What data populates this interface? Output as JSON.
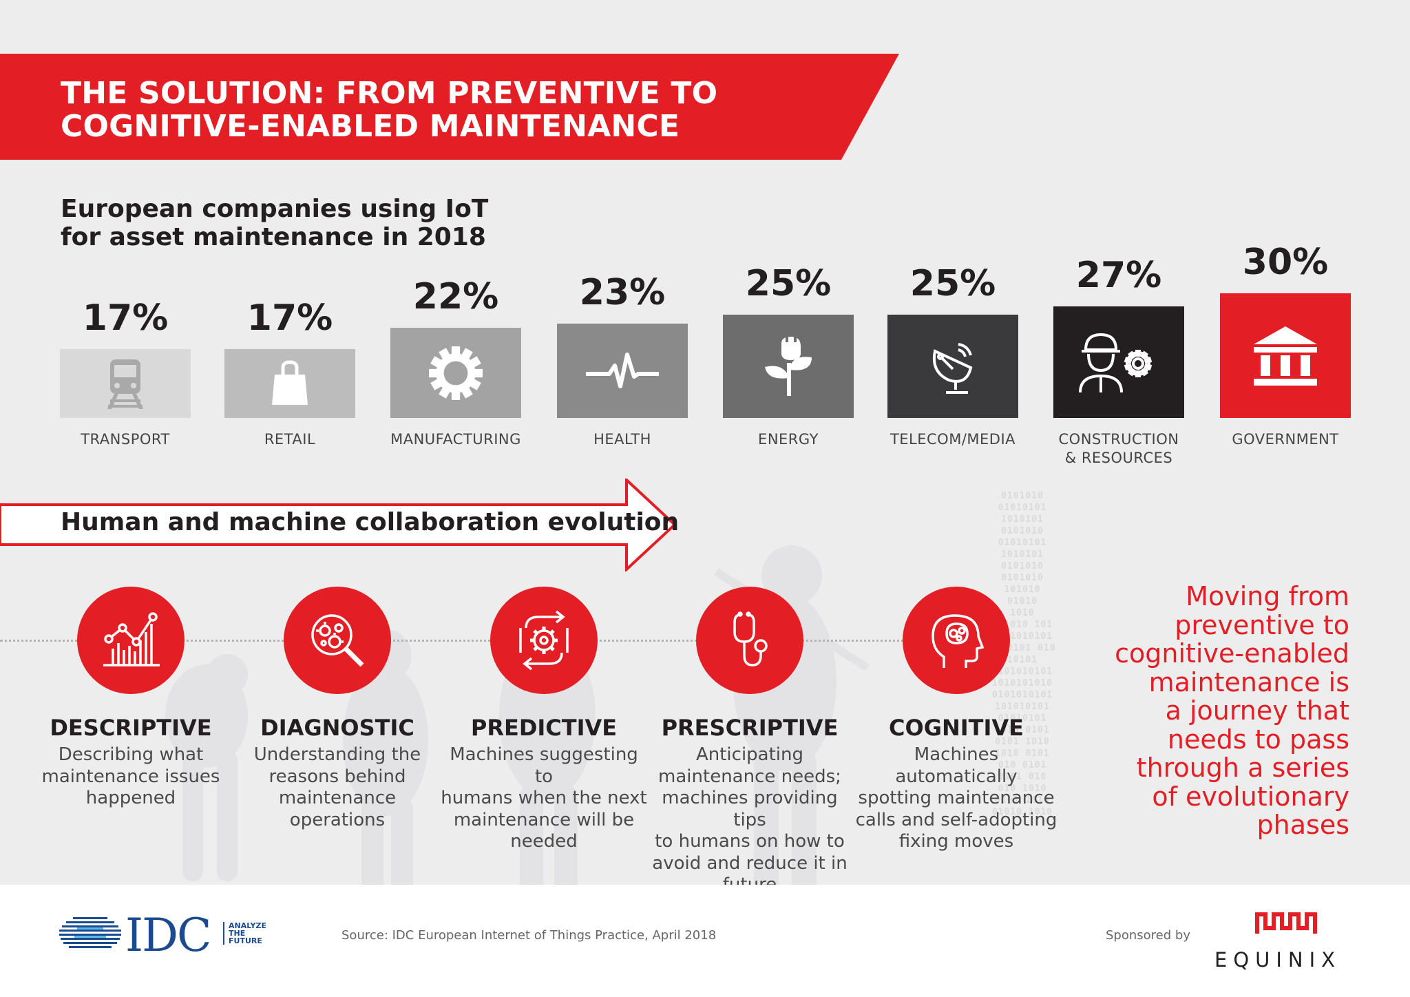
{
  "banner": {
    "title_line1": "THE SOLUTION: FROM PREVENTIVE TO",
    "title_line2": "COGNITIVE-ENABLED MAINTENANCE",
    "color": "#e31e24"
  },
  "chart": {
    "title_line1": "European companies using IoT",
    "title_line2": "for asset maintenance in 2018"
  },
  "chart_data": {
    "type": "bar",
    "title": "European companies using IoT for asset maintenance in 2018",
    "categories": [
      "TRANSPORT",
      "RETAIL",
      "MANUFACTURING",
      "HEALTH",
      "ENERGY",
      "TELECOM/MEDIA",
      "CONSTRUCTION & RESOURCES",
      "GOVERNMENT"
    ],
    "values": [
      17,
      17,
      22,
      23,
      25,
      25,
      27,
      30
    ],
    "value_labels": [
      "17%",
      "17%",
      "22%",
      "23%",
      "25%",
      "25%",
      "27%",
      "30%"
    ],
    "label_lines": [
      [
        "TRANSPORT"
      ],
      [
        "RETAIL"
      ],
      [
        "MANUFACTURING"
      ],
      [
        "HEALTH"
      ],
      [
        "ENERGY"
      ],
      [
        "TELECOM/MEDIA"
      ],
      [
        "CONSTRUCTION",
        "& RESOURCES"
      ],
      [
        "GOVERNMENT"
      ]
    ],
    "icons": [
      "train-icon",
      "shopping-bag-icon",
      "gear-icon",
      "heartbeat-icon",
      "plant-plug-icon",
      "satellite-dish-icon",
      "worker-gear-icon",
      "government-building-icon"
    ],
    "colors": [
      "#d9d9da",
      "#bcbcbd",
      "#a3a3a4",
      "#8a8a8b",
      "#6d6d6e",
      "#3a393b",
      "#231f20",
      "#e31e24"
    ],
    "icon_colors": [
      "#a9a9aa",
      "#ffffff",
      "#ffffff",
      "#ffffff",
      "#ffffff",
      "#ffffff",
      "#ffffff",
      "#ffffff"
    ],
    "ylabel": "",
    "xlabel": ""
  },
  "evolution": {
    "title": "Human and machine collaboration evolution",
    "phases": [
      {
        "title": "DESCRIPTIVE",
        "icon": "chart-growth-icon",
        "desc": [
          "Describing what",
          "maintenance issues",
          "happened"
        ]
      },
      {
        "title": "DIAGNOSTIC",
        "icon": "magnifier-virus-icon",
        "desc": [
          "Understanding the",
          "reasons behind",
          "maintenance",
          "operations"
        ]
      },
      {
        "title": "PREDICTIVE",
        "icon": "gear-cycle-icon",
        "desc": [
          "Machines suggesting to",
          "humans when the next",
          "maintenance will be",
          "needed"
        ]
      },
      {
        "title": "PRESCRIPTIVE",
        "icon": "stethoscope-icon",
        "desc": [
          "Anticipating",
          "maintenance needs;",
          "machines providing tips",
          "to humans on how to",
          "avoid and reduce it in",
          "future"
        ]
      },
      {
        "title": "COGNITIVE",
        "icon": "brain-head-icon",
        "desc": [
          "Machines automatically",
          "spotting maintenance",
          "calls and self-adopting",
          "fixing moves"
        ]
      }
    ],
    "quote_lines": [
      "Moving from",
      "preventive to",
      "cognitive-enabled",
      "maintenance is",
      "a journey that",
      "needs to pass",
      "through a series",
      "of evolutionary",
      "phases"
    ]
  },
  "footer": {
    "idc": "IDC",
    "idc_tagline": [
      "ANALYZE",
      "THE",
      "FUTURE"
    ],
    "source": "Source: IDC European Internet of Things Practice, April 2018",
    "sponsored_by": "Sponsored by",
    "sponsor": "EQUINIX"
  }
}
